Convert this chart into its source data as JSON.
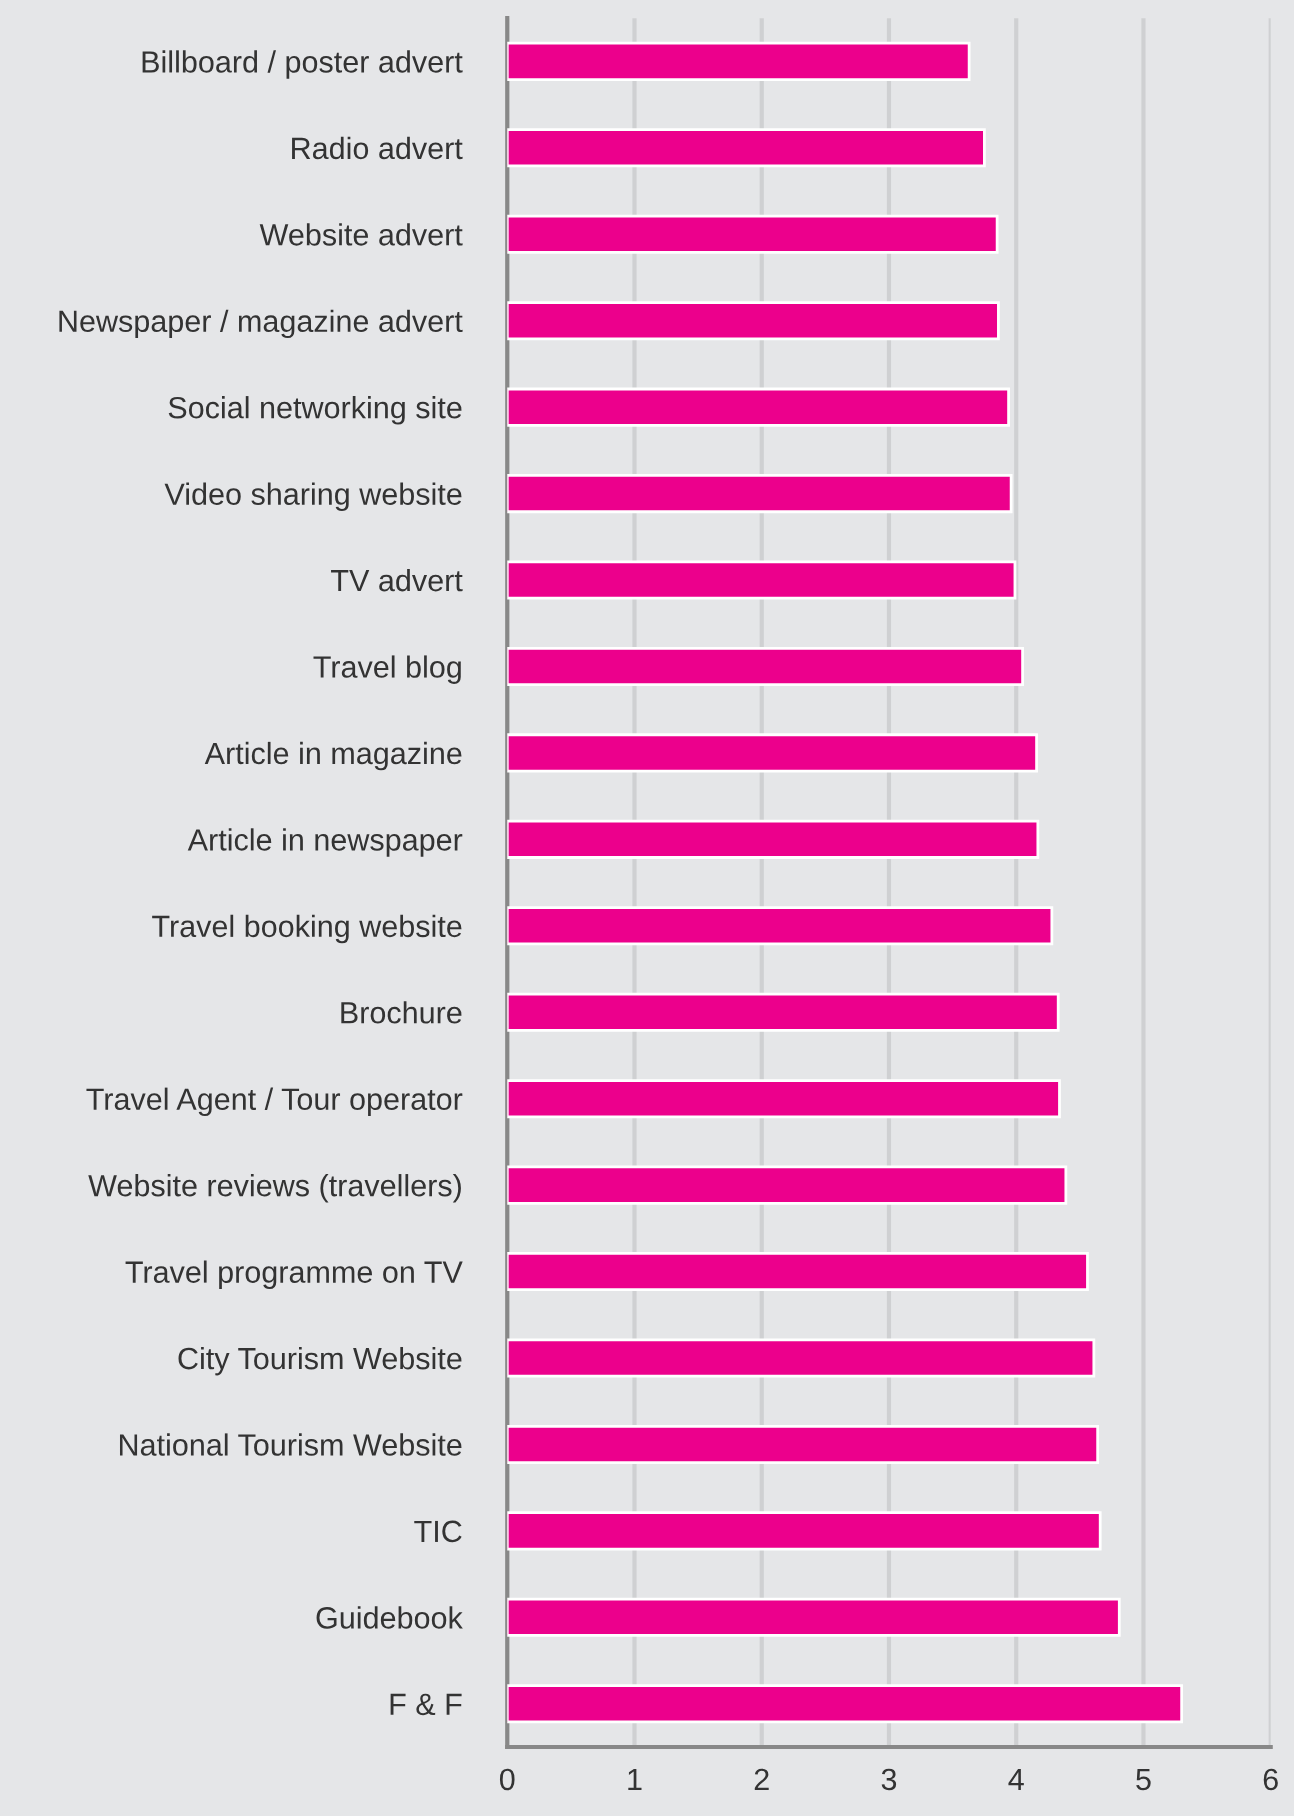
{
  "chart_data": {
    "type": "bar",
    "orientation": "horizontal",
    "categories": [
      "Billboard / poster advert",
      "Radio advert",
      "Website advert",
      "Newspaper / magazine advert",
      "Social networking site",
      "Video sharing website",
      "TV advert",
      "Travel blog",
      "Article in magazine",
      "Article in newspaper",
      "Travel booking website",
      "Brochure",
      "Travel Agent / Tour operator",
      "Website reviews (travellers)",
      "Travel programme on TV",
      "City Tourism Website",
      "National Tourism Website",
      "TIC",
      "Guidebook",
      "F & F"
    ],
    "values": [
      3.63,
      3.75,
      3.85,
      3.86,
      3.94,
      3.96,
      3.99,
      4.05,
      4.16,
      4.17,
      4.28,
      4.33,
      4.34,
      4.39,
      4.56,
      4.61,
      4.64,
      4.66,
      4.81,
      5.3
    ],
    "color": "#ec008c",
    "xlim": [
      0,
      6
    ],
    "xticks": [
      0,
      1,
      2,
      3,
      4,
      5,
      6
    ],
    "grid": "x"
  }
}
